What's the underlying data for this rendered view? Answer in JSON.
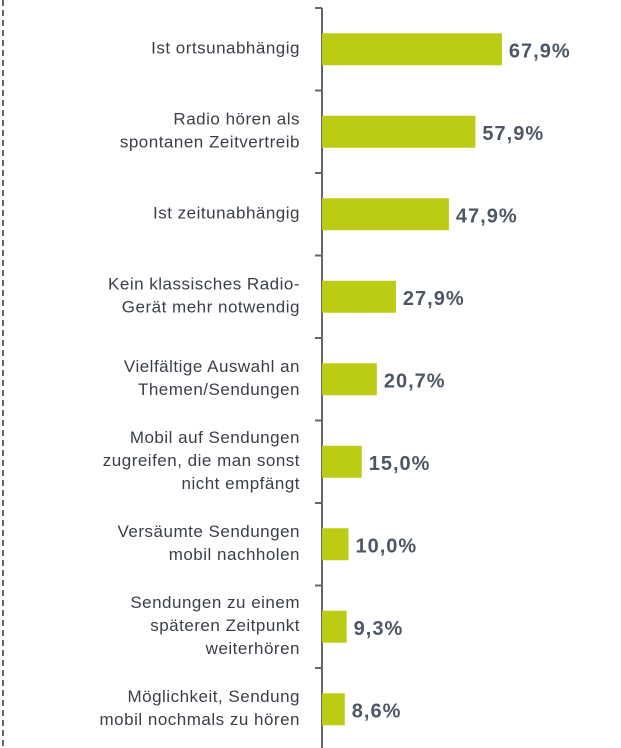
{
  "chart_data": {
    "type": "bar",
    "orientation": "horizontal",
    "categories": [
      [
        "Ist ortsunabhängig"
      ],
      [
        "Radio hören als",
        "spontanen Zeitvertreib"
      ],
      [
        "Ist zeitunabhängig"
      ],
      [
        "Kein klassisches Radio-",
        "Gerät mehr notwendig"
      ],
      [
        "Vielfältige Auswahl an",
        "Themen/Sendungen"
      ],
      [
        "Mobil auf Sendungen",
        "zugreifen, die man sonst",
        "nicht empfängt"
      ],
      [
        "Versäumte Sendungen",
        "mobil nachholen"
      ],
      [
        "Sendungen zu einem",
        "späteren Zeitpunkt",
        "weiterhören"
      ],
      [
        "Möglichkeit, Sendung",
        "mobil nochmals zu hören"
      ]
    ],
    "values": [
      67.9,
      57.9,
      47.9,
      27.9,
      20.7,
      15.0,
      10.0,
      9.3,
      8.6
    ],
    "value_labels": [
      "67,9%",
      "57,9%",
      "47,9%",
      "27,9%",
      "20,7%",
      "15,0%",
      "10,0%",
      "9,3%",
      "8,6%"
    ],
    "color": "#bccb14",
    "xlim": [
      0,
      100
    ]
  }
}
